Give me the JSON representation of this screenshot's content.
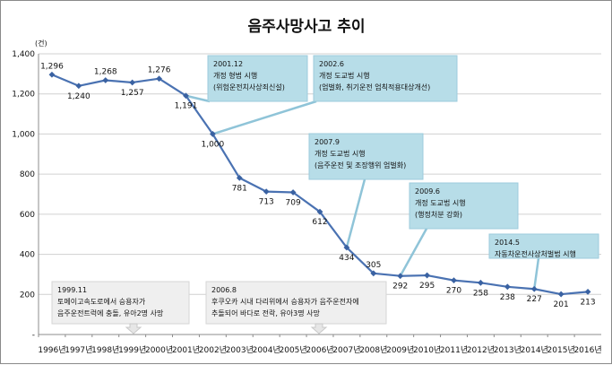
{
  "chart_data": {
    "type": "line",
    "title": "음주사망사고 추이",
    "unit_label": "(건)",
    "categories": [
      "1996년",
      "1997년",
      "1998년",
      "1999년",
      "2000년",
      "2001년",
      "2002년",
      "2003년",
      "2004년",
      "2005년",
      "2006년",
      "2007년",
      "2008년",
      "2009년",
      "2010년",
      "2011년",
      "2012년",
      "2013년",
      "2014년",
      "2015년",
      "2016년"
    ],
    "series": [
      {
        "values": [
          1296,
          1240,
          1268,
          1257,
          1276,
          1191,
          1000,
          781,
          713,
          709,
          612,
          434,
          305,
          292,
          295,
          270,
          258,
          238,
          227,
          201,
          213
        ]
      }
    ],
    "data_labels": [
      "1,296",
      "1,240",
      "1,268",
      "1,257",
      "1,276",
      "1,191",
      "1,000",
      "781",
      "713",
      "709",
      "612",
      "434",
      "305",
      "292",
      "295",
      "270",
      "258",
      "238",
      "227",
      "201",
      "213"
    ],
    "yticks": [
      "-",
      "200",
      "400",
      "600",
      "800",
      "1,000",
      "1,200",
      "1,400"
    ],
    "ylim": [
      0,
      1400
    ],
    "grid": true,
    "line_color": "#4a72b2",
    "marker_color": "#3a62a2",
    "callout_fill": "#b7dde8",
    "callout_line": "#8fc4d8",
    "note_fill": "#efefef",
    "callouts": [
      {
        "lines": [
          "2001.12",
          "개정 형법 시행",
          "(위험운전치사상죄신설)"
        ]
      },
      {
        "lines": [
          "2002.6",
          "개정 도교법 시행",
          "(엄벌화, 취기운전 엄칙적용대상개선)"
        ]
      },
      {
        "lines": [
          "2007.9",
          "개정 도교법 시행",
          "(음주운전 및 조장행위 엄벌화)"
        ]
      },
      {
        "lines": [
          "2009.6",
          "개정 도교법 시행",
          "(행정처분 강화)"
        ]
      },
      {
        "lines": [
          "2014.5",
          "자동차운전사상처벌법 시행"
        ]
      }
    ],
    "notes": [
      {
        "lines": [
          "1999.11",
          "토메이고속도로에서 승용자가",
          "음주운전트럭에 충돌, 유아2명 사망"
        ]
      },
      {
        "lines": [
          "2006.8",
          "후쿠오카 시내 다리위에서 승용자가 음주운전자에",
          "추돌되어 바다로 전락, 유아3명 사망"
        ]
      }
    ]
  }
}
